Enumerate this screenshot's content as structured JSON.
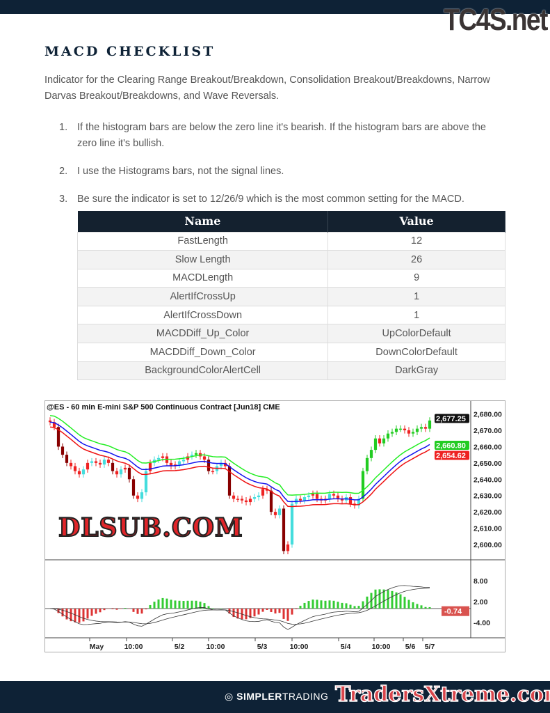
{
  "watermarks": {
    "top": "TC4S.net",
    "middle": "DLSUB.COM",
    "footer": "TradersXtreme.com"
  },
  "title": "MACD CHECKLIST",
  "intro": "Indicator for the Clearing Range Breakout/Breakdown, Consolidation Breakout/Breakdowns, Narrow Darvas Breakout/Breakdowns, and Wave Reversals.",
  "list": [
    {
      "n": "1.",
      "text": "If the histogram bars are below the zero line it's bearish. If the histogram bars are above the zero line it's bullish."
    },
    {
      "n": "2.",
      "text": "I use the Histograms bars, not the signal lines."
    },
    {
      "n": "3.",
      "text": "Be sure the indicator is set to 12/26/9 which is the most common setting for the MACD."
    }
  ],
  "table": {
    "headers": [
      "Name",
      "Value"
    ],
    "rows": [
      [
        "FastLength",
        "12"
      ],
      [
        "Slow Length",
        "26"
      ],
      [
        "MACDLength",
        "9"
      ],
      [
        "AlertIfCrossUp",
        "1"
      ],
      [
        "AlertIfCrossDown",
        "1"
      ],
      [
        "MACDDiff_Up_Color",
        "UpColorDefault"
      ],
      [
        "MACDDiff_Down_Color",
        "DownColorDefault"
      ],
      [
        "BackgroundColorAlertCell",
        "DarkGray"
      ]
    ]
  },
  "footer": {
    "brand_bold": "SIMPLER",
    "brand_light": "TRADING",
    "icon": "chart-circle-icon"
  },
  "chart_data": {
    "type": "candlestick",
    "title": "@ES - 60 min  E-mini S&P 500 Continuous Contract [Jun18]  CME",
    "price_ticks": [
      "2,680.00",
      "2,670.00",
      "2,660.00",
      "2,650.00",
      "2,640.00",
      "2,630.00",
      "2,620.00",
      "2,610.00",
      "2,600.00"
    ],
    "price_tick_values": [
      2680,
      2670,
      2660,
      2650,
      2640,
      2630,
      2620,
      2610,
      2600
    ],
    "price_labels": [
      {
        "text": "2,677.25",
        "color": "#111111"
      },
      {
        "text": "2,660.80",
        "color": "#22cc22"
      },
      {
        "text": "2,654.62",
        "color": "#ee2222"
      }
    ],
    "macd_ticks": [
      "8.00",
      "2.00",
      "-4.00"
    ],
    "macd_tick_values": [
      8,
      2,
      -4
    ],
    "macd_label": {
      "text": "-0.74",
      "color": "#d9534f"
    },
    "macd_settings": [
      12,
      26,
      9
    ],
    "x_labels": [
      "May",
      "10:00",
      "5/2",
      "10:00",
      "5/3",
      "10:00",
      "5/4",
      "10:00",
      "5/6",
      "5/7"
    ],
    "colors": {
      "upper_band": "#22ee22",
      "middle_band": "#1111ee",
      "lower_band": "#ee1111",
      "hist_up": "#33cc33",
      "hist_down": "#dd3333"
    },
    "closes": [
      2675,
      2672,
      2660,
      2655,
      2650,
      2648,
      2645,
      2643,
      2646,
      2650,
      2651,
      2650,
      2649,
      2652,
      2650,
      2645,
      2643,
      2646,
      2647,
      2640,
      2630,
      2628,
      2632,
      2645,
      2650,
      2652,
      2653,
      2654,
      2650,
      2648,
      2649,
      2651,
      2652,
      2654,
      2655,
      2656,
      2654,
      2652,
      2645,
      2645,
      2648,
      2650,
      2648,
      2630,
      2628,
      2628,
      2627,
      2626,
      2628,
      2629,
      2630,
      2634,
      2633,
      2620,
      2618,
      2622,
      2596,
      2600,
      2625,
      2628,
      2627,
      2629,
      2630,
      2631,
      2628,
      2627,
      2628,
      2631,
      2630,
      2628,
      2627,
      2629,
      2625,
      2624,
      2628,
      2645,
      2653,
      2658,
      2665,
      2662,
      2665,
      2668,
      2669,
      2671,
      2671,
      2670,
      2668,
      2669,
      2671,
      2672,
      2671,
      2676
    ]
  }
}
